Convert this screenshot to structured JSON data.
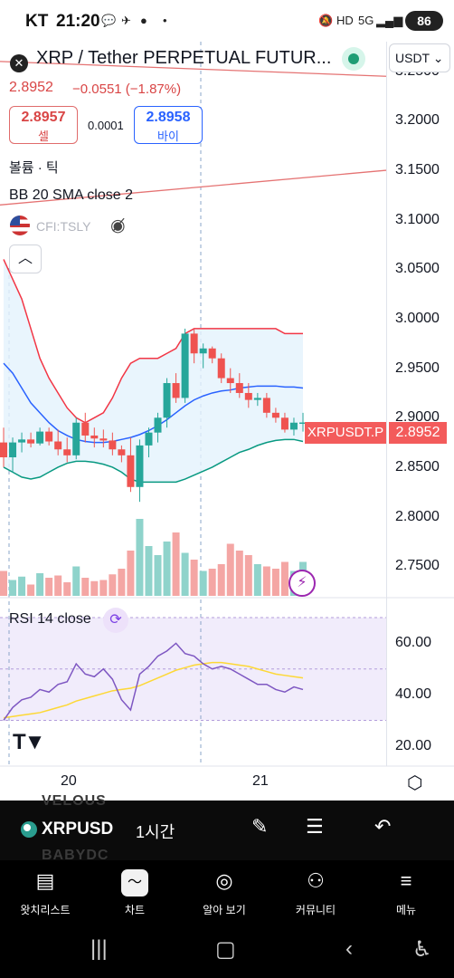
{
  "status_bar": {
    "carrier": "KT",
    "time": "21:20",
    "icons": [
      "talk-icon",
      "telegram-icon",
      "reddit-icon",
      "dot-icon",
      "mute-icon",
      "hd-icon",
      "5g-icon",
      "signal-icon"
    ],
    "battery": "86"
  },
  "header": {
    "title": "XRP / Tether PERPETUAL FUTUR...",
    "currency_selector": "USDT ⌄",
    "price": "2.8952",
    "change": "−0.0551 (−1.87%)",
    "sell_price": "2.8957",
    "sell_label": "셀",
    "spread": "0.0001",
    "buy_price": "2.8958",
    "buy_label": "바이"
  },
  "legends": {
    "volume": "볼륨 · 틱",
    "bb": "BB 20 SMA close 2",
    "compare_symbol": "CFI:TSLY",
    "rsi": "RSI 14 close"
  },
  "price_axis": {
    "labels": [
      "3.2500",
      "3.2000",
      "3.1500",
      "3.1000",
      "3.0500",
      "3.0000",
      "2.9500",
      "2.9000",
      "2.8500",
      "2.8000",
      "2.7500"
    ],
    "current_tag": "2.8952",
    "symbol_tag": "XRPUSDT.P"
  },
  "rsi_axis": {
    "labels": [
      "60.00",
      "40.00",
      "20.00"
    ]
  },
  "time_axis": {
    "labels": [
      "20",
      "21"
    ]
  },
  "chart_data": {
    "type": "candlestick",
    "symbol": "XRPUSDT.P",
    "interval": "1시간",
    "ylim": [
      2.72,
      3.28
    ],
    "candles": [
      {
        "o": 2.875,
        "h": 2.89,
        "l": 2.85,
        "c": 2.86
      },
      {
        "o": 2.86,
        "h": 2.88,
        "l": 2.845,
        "c": 2.875
      },
      {
        "o": 2.875,
        "h": 2.885,
        "l": 2.865,
        "c": 2.878
      },
      {
        "o": 2.878,
        "h": 2.885,
        "l": 2.87,
        "c": 2.874
      },
      {
        "o": 2.874,
        "h": 2.89,
        "l": 2.872,
        "c": 2.886
      },
      {
        "o": 2.886,
        "h": 2.89,
        "l": 2.872,
        "c": 2.876
      },
      {
        "o": 2.876,
        "h": 2.888,
        "l": 2.862,
        "c": 2.868
      },
      {
        "o": 2.868,
        "h": 2.88,
        "l": 2.855,
        "c": 2.862
      },
      {
        "o": 2.862,
        "h": 2.9,
        "l": 2.858,
        "c": 2.895
      },
      {
        "o": 2.895,
        "h": 2.905,
        "l": 2.875,
        "c": 2.882
      },
      {
        "o": 2.882,
        "h": 2.89,
        "l": 2.87,
        "c": 2.879
      },
      {
        "o": 2.879,
        "h": 2.888,
        "l": 2.87,
        "c": 2.877
      },
      {
        "o": 2.877,
        "h": 2.885,
        "l": 2.862,
        "c": 2.868
      },
      {
        "o": 2.868,
        "h": 2.872,
        "l": 2.855,
        "c": 2.862
      },
      {
        "o": 2.862,
        "h": 2.88,
        "l": 2.825,
        "c": 2.83
      },
      {
        "o": 2.83,
        "h": 2.878,
        "l": 2.815,
        "c": 2.872
      },
      {
        "o": 2.872,
        "h": 2.89,
        "l": 2.86,
        "c": 2.885
      },
      {
        "o": 2.885,
        "h": 2.905,
        "l": 2.875,
        "c": 2.9
      },
      {
        "o": 2.9,
        "h": 2.94,
        "l": 2.89,
        "c": 2.935
      },
      {
        "o": 2.935,
        "h": 2.945,
        "l": 2.915,
        "c": 2.92
      },
      {
        "o": 2.92,
        "h": 2.99,
        "l": 2.915,
        "c": 2.985
      },
      {
        "o": 2.985,
        "h": 2.99,
        "l": 2.955,
        "c": 2.965
      },
      {
        "o": 2.965,
        "h": 2.975,
        "l": 2.95,
        "c": 2.97
      },
      {
        "o": 2.97,
        "h": 2.972,
        "l": 2.955,
        "c": 2.96
      },
      {
        "o": 2.96,
        "h": 2.965,
        "l": 2.935,
        "c": 2.94
      },
      {
        "o": 2.94,
        "h": 2.95,
        "l": 2.925,
        "c": 2.935
      },
      {
        "o": 2.935,
        "h": 2.945,
        "l": 2.92,
        "c": 2.925
      },
      {
        "o": 2.925,
        "h": 2.935,
        "l": 2.91,
        "c": 2.918
      },
      {
        "o": 2.918,
        "h": 2.925,
        "l": 2.912,
        "c": 2.92
      },
      {
        "o": 2.92,
        "h": 2.925,
        "l": 2.9,
        "c": 2.905
      },
      {
        "o": 2.905,
        "h": 2.91,
        "l": 2.895,
        "c": 2.9
      },
      {
        "o": 2.9,
        "h": 2.905,
        "l": 2.885,
        "c": 2.888
      },
      {
        "o": 2.888,
        "h": 2.9,
        "l": 2.882,
        "c": 2.895
      },
      {
        "o": 2.895,
        "h": 2.905,
        "l": 2.886,
        "c": 2.8952
      }
    ],
    "volume": [
      22,
      14,
      17,
      10,
      20,
      16,
      18,
      12,
      26,
      16,
      13,
      14,
      19,
      24,
      40,
      68,
      44,
      36,
      48,
      56,
      38,
      32,
      22,
      24,
      28,
      46,
      40,
      36,
      28,
      26,
      24,
      30,
      22,
      30
    ],
    "bb_upper": [
      3.06,
      3.04,
      3.02,
      2.99,
      2.96,
      2.94,
      2.925,
      2.91,
      2.9,
      2.895,
      2.9,
      2.905,
      2.92,
      2.94,
      2.955,
      2.96,
      2.96,
      2.96,
      2.965,
      2.97,
      2.985,
      2.99,
      2.99,
      2.99,
      2.99,
      2.99,
      2.99,
      2.99,
      2.99,
      2.99,
      2.99,
      2.985,
      2.985,
      2.985
    ],
    "bb_middle": [
      2.955,
      2.945,
      2.93,
      2.915,
      2.905,
      2.895,
      2.887,
      2.882,
      2.878,
      2.876,
      2.875,
      2.875,
      2.876,
      2.878,
      2.88,
      2.883,
      2.887,
      2.892,
      2.898,
      2.905,
      2.912,
      2.918,
      2.922,
      2.925,
      2.927,
      2.928,
      2.93,
      2.931,
      2.932,
      2.932,
      2.932,
      2.931,
      2.931,
      2.93
    ],
    "bb_lower": [
      2.85,
      2.845,
      2.84,
      2.838,
      2.84,
      2.845,
      2.85,
      2.854,
      2.856,
      2.856,
      2.855,
      2.853,
      2.85,
      2.845,
      2.838,
      2.835,
      2.835,
      2.835,
      2.835,
      2.835,
      2.838,
      2.842,
      2.846,
      2.85,
      2.855,
      2.86,
      2.865,
      2.868,
      2.872,
      2.875,
      2.877,
      2.878,
      2.878,
      2.876
    ],
    "rsi": [
      30,
      35,
      38,
      39,
      42,
      41,
      44,
      45,
      52,
      48,
      47,
      50,
      46,
      38,
      34,
      48,
      51,
      55,
      57,
      60,
      56,
      55,
      52,
      50,
      51,
      50,
      48,
      46,
      44,
      44,
      42,
      41,
      43,
      42
    ],
    "rsi_ma": [
      31,
      31.5,
      32,
      32.5,
      33,
      34,
      35,
      36,
      37.5,
      38.5,
      39.5,
      40.5,
      41.5,
      42,
      42.5,
      43.5,
      45,
      46.5,
      48,
      49.5,
      50.5,
      51.5,
      52,
      52.5,
      52.5,
      52,
      51.5,
      51,
      50,
      49,
      48,
      47.5,
      47,
      46.5
    ],
    "rsi_ylim": [
      15,
      70
    ],
    "rsi_band": [
      30,
      70
    ],
    "compare_lines": [
      {
        "name": "CFI:TSLY",
        "start": 3.26,
        "end": 3.245
      },
      {
        "name": "CFI:TSLY",
        "start": 3.115,
        "end": 3.15
      }
    ],
    "colors": {
      "up": "#26a69a",
      "down": "#ef5350",
      "bb_upper": "#f23645",
      "bb_middle": "#2962ff",
      "bb_lower": "#089981",
      "rsi": "#7e57c2",
      "rsi_ma": "#fdd835"
    }
  },
  "toolbar": {
    "symbol": "XRPUSD",
    "interval": "1시간",
    "ghost_top": "VELOUS",
    "ghost_bottom": "BABYDC"
  },
  "bottom_nav": {
    "items": [
      {
        "label": "왓치리스트",
        "icon": "watchlist-icon"
      },
      {
        "label": "차트",
        "icon": "chart-icon"
      },
      {
        "label": "알아 보기",
        "icon": "compass-icon"
      },
      {
        "label": "커뮤니티",
        "icon": "community-icon"
      },
      {
        "label": "메뉴",
        "icon": "menu-icon"
      }
    ]
  }
}
